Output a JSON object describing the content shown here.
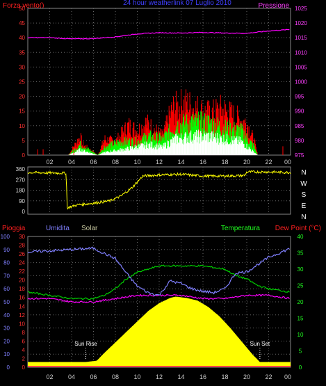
{
  "chart_data": [
    {
      "type": "line",
      "title": "24 hour weatherlink  07 Luglio 2010",
      "left_label": "Forza vento()",
      "right_label": "Pressione",
      "left_ticks": [
        "50",
        "45",
        "40",
        "35",
        "30",
        "25",
        "20",
        "15",
        "10",
        "5",
        "0"
      ],
      "right_ticks": [
        "1025",
        "1020",
        "1015",
        "1010",
        "1005",
        "1000",
        "995",
        "990",
        "985",
        "980",
        "975"
      ],
      "x_ticks": [
        "02",
        "04",
        "06",
        "08",
        "10",
        "12",
        "14",
        "16",
        "18",
        "20",
        "22",
        "00"
      ],
      "ylim_left": [
        0,
        50
      ],
      "ylim_right": [
        975,
        1025
      ],
      "series": [
        {
          "name": "Pressione",
          "color": "#ff00ff",
          "axis": "right",
          "x": [
            0,
            2,
            4,
            6,
            8,
            10,
            12,
            14,
            16,
            18,
            20,
            22,
            24
          ],
          "values": [
            1015,
            1015,
            1014.6,
            1014.7,
            1015.3,
            1016.3,
            1016.7,
            1016.6,
            1016.8,
            1016.6,
            1016.5,
            1017.3,
            1017.8
          ]
        },
        {
          "color": "#ff0000",
          "axis": "left",
          "x": [
            0,
            3.7,
            4.8,
            5.0,
            6.4,
            7.0,
            8.0,
            9.2,
            10.0,
            10.8,
            12.3,
            13.2,
            14.4,
            15.5,
            16.7,
            17.7,
            19.0,
            20.0,
            20.7,
            21.0
          ],
          "values": [
            0,
            0,
            7,
            4,
            0,
            6,
            5,
            11,
            9,
            12,
            7,
            17,
            19,
            17,
            15,
            17,
            14,
            12,
            5,
            0
          ]
        },
        {
          "color": "#00ff00",
          "axis": "left",
          "x": [
            0,
            3.7,
            4.8,
            6.4,
            7.0,
            8.5,
            10.0,
            11.0,
            12.3,
            13.5,
            15.0,
            16.5,
            18.0,
            19.5,
            20.7,
            21.0
          ],
          "values": [
            0,
            0,
            4,
            0,
            3,
            5,
            5,
            7,
            6,
            11,
            12,
            12,
            10,
            9,
            3,
            0
          ]
        },
        {
          "color": "#ffffff",
          "axis": "left",
          "x": [
            0,
            3.7,
            4.8,
            6.4,
            7.0,
            8.5,
            10.0,
            11.0,
            12.3,
            13.5,
            15.0,
            16.5,
            18.0,
            19.5,
            20.7,
            21.0
          ],
          "values": [
            0,
            0,
            2,
            0,
            1,
            2,
            3,
            4,
            3,
            6,
            7,
            7,
            6,
            5,
            1,
            0
          ]
        }
      ]
    },
    {
      "type": "scatter",
      "left_ticks": [
        "360",
        "270",
        "180",
        "90",
        "0"
      ],
      "right_labels": [
        "N",
        "W",
        "S",
        "E",
        "N"
      ],
      "x_ticks": [
        "02",
        "04",
        "06",
        "08",
        "10",
        "12",
        "14",
        "16",
        "18",
        "20",
        "22",
        "00"
      ],
      "ylim": [
        0,
        360
      ],
      "series": [
        {
          "color": "#ffff00",
          "x": [
            0,
            3.5,
            3.6,
            4.5,
            6.0,
            7.5,
            8.5,
            9.5,
            10.5,
            12.0,
            14.0,
            16.0,
            18.0,
            19.8,
            20.0,
            22.0,
            24.0
          ],
          "values": [
            330,
            325,
            30,
            55,
            70,
            90,
            130,
            200,
            300,
            310,
            315,
            300,
            300,
            305,
            335,
            335,
            330
          ]
        }
      ]
    },
    {
      "type": "line",
      "top_labels": [
        "Pioggia",
        "Umidita",
        "Solar",
        "Temperatura",
        "Dew Point (°C)"
      ],
      "left_ticks_1": [
        "100",
        "90",
        "80",
        "70",
        "60",
        "50",
        "40",
        "30",
        "20",
        "10",
        "0"
      ],
      "left_ticks_2": [
        "30",
        "28",
        "26",
        "24",
        "22",
        "20",
        "18",
        "16",
        "14",
        "12",
        "10",
        "8",
        "6",
        "4",
        "2",
        "0"
      ],
      "right_ticks": [
        "40",
        "35",
        "30",
        "25",
        "20",
        "15",
        "10",
        "5",
        "0"
      ],
      "x_ticks": [
        "02",
        "04",
        "06",
        "08",
        "10",
        "12",
        "14",
        "16",
        "18",
        "20",
        "22",
        "00"
      ],
      "annotations": [
        "Sun Rise",
        "Sun Set"
      ],
      "xlabels_note": [
        "Sun Rise",
        "Sun Set"
      ],
      "ylim_humidity": [
        0,
        100
      ],
      "ylim_temperature": [
        0,
        40
      ],
      "series": [
        {
          "name": "Umidita",
          "color": "#8080ff",
          "axis": "humidity",
          "x": [
            0,
            2,
            4,
            6,
            8,
            9,
            10,
            11,
            12,
            13,
            14,
            15,
            16,
            17,
            18,
            19,
            20,
            22,
            24
          ],
          "values": [
            88,
            89,
            90,
            91,
            83,
            72,
            62,
            57,
            55,
            66,
            64,
            60,
            58,
            57,
            60,
            72,
            73,
            84,
            91
          ]
        },
        {
          "name": "Temperatura",
          "color": "#00cc00",
          "axis": "temperature",
          "x": [
            0,
            2,
            4,
            6,
            7,
            8,
            9,
            10,
            11,
            12,
            14,
            16,
            18,
            19,
            20,
            21,
            22,
            24
          ],
          "values": [
            23,
            22,
            21,
            21,
            22,
            24,
            27,
            29,
            30,
            31,
            31,
            31,
            30,
            28,
            27,
            25,
            24,
            23
          ]
        },
        {
          "name": "Dew Point",
          "color": "#ff00ff",
          "axis": "temperature",
          "x": [
            0,
            2,
            4,
            6,
            8,
            10,
            12,
            14,
            16,
            18,
            20,
            22,
            24
          ],
          "values": [
            21,
            21,
            20,
            20,
            21,
            22,
            22,
            22,
            21,
            21,
            22,
            22,
            21
          ]
        },
        {
          "name": "Solar",
          "color": "#ffff00",
          "axis": "humidity",
          "x": [
            0,
            5.3,
            6.3,
            7.0,
            8.0,
            9.0,
            10.0,
            11.0,
            12.0,
            13.0,
            13.5,
            14.5,
            15.5,
            16.5,
            17.5,
            18.5,
            19.5,
            20.5,
            21.2,
            24
          ],
          "values": [
            4,
            4,
            5,
            11,
            19,
            27,
            35,
            43,
            49,
            53,
            54,
            53,
            51,
            46,
            39,
            30,
            20,
            10,
            4,
            4
          ]
        },
        {
          "name": "Pioggia",
          "color": "#ff4444",
          "axis": "humidity",
          "x": [
            0,
            24
          ],
          "values": [
            0,
            0
          ]
        }
      ]
    }
  ]
}
